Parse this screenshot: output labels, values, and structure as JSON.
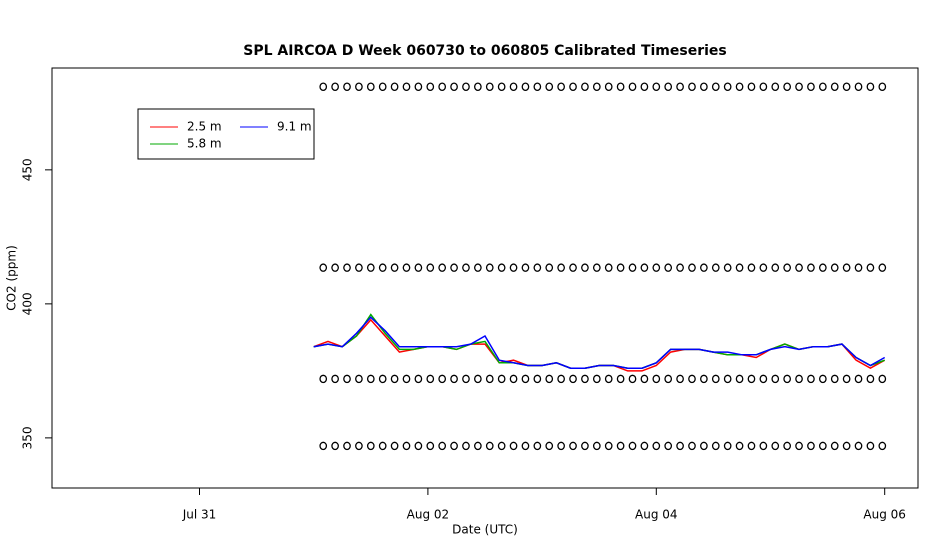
{
  "chart_data": {
    "type": "line",
    "title": "SPL AIRCOA D  Week 060730 to 060805  Calibrated Timeseries",
    "xlabel": "Date (UTC)",
    "ylabel": "CO2 (ppm)",
    "xlim": [
      "Jul 29 17:00",
      "Aug 06 07:00"
    ],
    "xticks": [
      "Jul 31",
      "Aug 02",
      "Aug 04",
      "Aug 06"
    ],
    "ylim": [
      331.3,
      488
    ],
    "yticks": [
      350,
      400,
      450
    ],
    "legend": "top-left",
    "x": [
      "Aug 01 00:00",
      "Aug 01 03:00",
      "Aug 01 06:00",
      "Aug 01 09:00",
      "Aug 01 12:00",
      "Aug 01 15:00",
      "Aug 01 18:00",
      "Aug 01 21:00",
      "Aug 02 00:00",
      "Aug 02 03:00",
      "Aug 02 06:00",
      "Aug 02 09:00",
      "Aug 02 12:00",
      "Aug 02 15:00",
      "Aug 02 18:00",
      "Aug 02 21:00",
      "Aug 03 00:00",
      "Aug 03 03:00",
      "Aug 03 06:00",
      "Aug 03 09:00",
      "Aug 03 12:00",
      "Aug 03 15:00",
      "Aug 03 18:00",
      "Aug 03 21:00",
      "Aug 04 00:00",
      "Aug 04 03:00",
      "Aug 04 06:00",
      "Aug 04 09:00",
      "Aug 04 12:00",
      "Aug 04 15:00",
      "Aug 04 18:00",
      "Aug 04 21:00",
      "Aug 05 00:00",
      "Aug 05 03:00",
      "Aug 05 06:00",
      "Aug 05 09:00",
      "Aug 05 12:00",
      "Aug 05 15:00",
      "Aug 05 18:00",
      "Aug 05 21:00",
      "Aug 06 00:00"
    ],
    "series": [
      {
        "name": "2.5 m",
        "color": "#ff0000",
        "values": [
          384,
          386,
          384,
          388,
          394,
          388,
          382,
          383,
          384,
          384,
          383,
          385,
          385,
          378,
          379,
          377,
          377,
          378,
          376,
          376,
          377,
          377,
          375,
          375,
          377,
          382,
          383,
          383,
          382,
          381,
          381,
          380,
          383,
          385,
          383,
          384,
          384,
          385,
          379,
          376,
          379
        ]
      },
      {
        "name": "5.8 m",
        "color": "#00aa00",
        "values": [
          384,
          385,
          384,
          388,
          396,
          389,
          383,
          383,
          384,
          384,
          383,
          385,
          386,
          378,
          378,
          377,
          377,
          378,
          376,
          376,
          377,
          377,
          376,
          376,
          378,
          383,
          383,
          383,
          382,
          381,
          381,
          381,
          383,
          385,
          383,
          384,
          384,
          385,
          380,
          377,
          379
        ]
      },
      {
        "name": "9.1 m",
        "color": "#0000ff",
        "values": [
          384,
          385,
          384,
          389,
          395,
          390,
          384,
          384,
          384,
          384,
          384,
          385,
          388,
          379,
          378,
          377,
          377,
          378,
          376,
          376,
          377,
          377,
          376,
          376,
          378,
          383,
          383,
          383,
          382,
          382,
          381,
          381,
          383,
          384,
          383,
          384,
          384,
          385,
          380,
          377,
          380
        ]
      }
    ],
    "calibration": {
      "color": "#000000",
      "x": [
        "Aug 01 02:00",
        "Aug 01 04:30",
        "Aug 01 07:00",
        "Aug 01 09:30",
        "Aug 01 12:00",
        "Aug 01 14:30",
        "Aug 01 17:00",
        "Aug 01 19:30",
        "Aug 01 22:00",
        "Aug 02 00:30",
        "Aug 02 03:00",
        "Aug 02 05:30",
        "Aug 02 08:00",
        "Aug 02 10:30",
        "Aug 02 13:00",
        "Aug 02 15:30",
        "Aug 02 18:00",
        "Aug 02 20:30",
        "Aug 02 23:00",
        "Aug 03 01:30",
        "Aug 03 04:00",
        "Aug 03 06:30",
        "Aug 03 09:00",
        "Aug 03 11:30",
        "Aug 03 14:00",
        "Aug 03 16:30",
        "Aug 03 19:00",
        "Aug 03 21:30",
        "Aug 04 00:00",
        "Aug 04 02:30",
        "Aug 04 05:00",
        "Aug 04 07:30",
        "Aug 04 10:00",
        "Aug 04 12:30",
        "Aug 04 15:00",
        "Aug 04 17:30",
        "Aug 04 20:00",
        "Aug 04 22:30",
        "Aug 05 01:00",
        "Aug 05 03:30",
        "Aug 05 06:00",
        "Aug 05 08:30",
        "Aug 05 11:00",
        "Aug 05 13:30",
        "Aug 05 16:00",
        "Aug 05 18:30",
        "Aug 05 21:00",
        "Aug 05 23:30"
      ],
      "values": [
        [
          481,
          481,
          481,
          481,
          481,
          481,
          481,
          481,
          481,
          481,
          481,
          481,
          481,
          481,
          481,
          481,
          481,
          481,
          481,
          481,
          481,
          481,
          481,
          481,
          481,
          481,
          481,
          481,
          481,
          481,
          481,
          481,
          481,
          481,
          481,
          481,
          481,
          481,
          481,
          481,
          481,
          481,
          481,
          481,
          481,
          481,
          481,
          481
        ],
        [
          413.5,
          413.5,
          413.5,
          413.5,
          413.5,
          413.5,
          413.5,
          413.5,
          413.5,
          413.5,
          413.5,
          413.5,
          413.5,
          413.5,
          413.5,
          413.5,
          413.5,
          413.5,
          413.5,
          413.5,
          413.5,
          413.5,
          413.5,
          413.5,
          413.5,
          413.5,
          413.5,
          413.5,
          413.5,
          413.5,
          413.5,
          413.5,
          413.5,
          413.5,
          413.5,
          413.5,
          413.5,
          413.5,
          413.5,
          413.5,
          413.5,
          413.5,
          413.5,
          413.5,
          413.5,
          413.5,
          413.5,
          413.5
        ],
        [
          372,
          372,
          372,
          372,
          372,
          372,
          372,
          372,
          372,
          372,
          372,
          372,
          372,
          372,
          372,
          372,
          372,
          372,
          372,
          372,
          372,
          372,
          372,
          372,
          372,
          372,
          372,
          372,
          372,
          372,
          372,
          372,
          372,
          372,
          372,
          372,
          372,
          372,
          372,
          372,
          372,
          372,
          372,
          372,
          372,
          372,
          372,
          372
        ],
        [
          347,
          347,
          347,
          347,
          347,
          347,
          347,
          347,
          347,
          347,
          347,
          347,
          347,
          347,
          347,
          347,
          347,
          347,
          347,
          347,
          347,
          347,
          347,
          347,
          347,
          347,
          347,
          347,
          347,
          347,
          347,
          347,
          347,
          347,
          347,
          347,
          347,
          347,
          347,
          347,
          347,
          347,
          347,
          347,
          347,
          347,
          347,
          347
        ]
      ]
    }
  }
}
